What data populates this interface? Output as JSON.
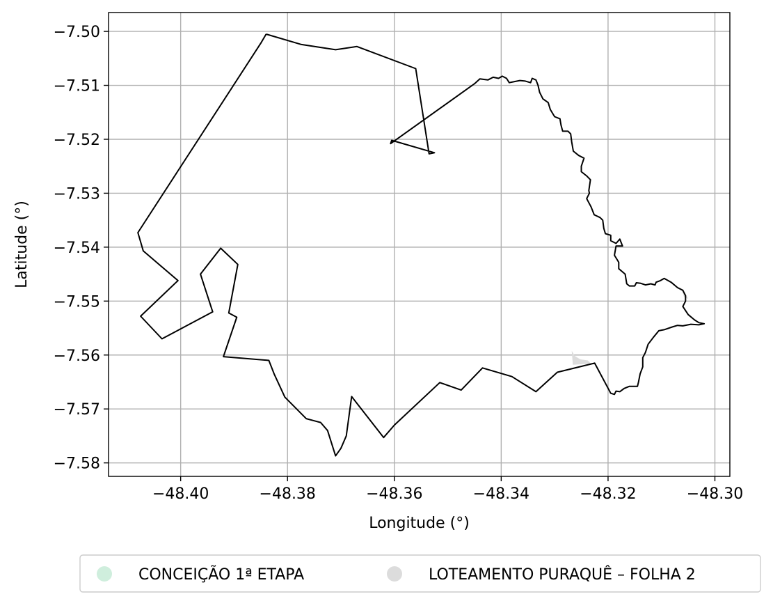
{
  "chart_data": {
    "type": "map",
    "xlabel": "Longitude (°)",
    "ylabel": "Latitude (°)",
    "xlim": [
      -48.4135,
      -48.2972
    ],
    "ylim": [
      -7.5825,
      -7.4965
    ],
    "grid": true,
    "x_ticks": [
      -48.4,
      -48.38,
      -48.36,
      -48.34,
      -48.32,
      -48.3
    ],
    "x_tick_labels": [
      "−48.40",
      "−48.38",
      "−48.36",
      "−48.34",
      "−48.32",
      "−48.30"
    ],
    "y_ticks": [
      -7.5,
      -7.51,
      -7.52,
      -7.53,
      -7.54,
      -7.55,
      -7.56,
      -7.57,
      -7.58
    ],
    "y_tick_labels": [
      "−7.50",
      "−7.51",
      "−7.52",
      "−7.53",
      "−7.54",
      "−7.55",
      "−7.56",
      "−7.57",
      "−7.58"
    ],
    "legend_position": "bottom-center",
    "series": [
      {
        "name": "CONCEIÇÃO 1ª ETAPA",
        "color": "#cfeedd",
        "polygons": []
      },
      {
        "name": "LOTEAMENTO PURAQUÊ – FOLHA 2",
        "color": "#dcdcdc",
        "polygons": [
          [
            [
              -48.3268,
              -7.5592
            ],
            [
              -48.3262,
              -7.5602
            ],
            [
              -48.3252,
              -7.5608
            ],
            [
              -48.3238,
              -7.561
            ],
            [
              -48.3232,
              -7.5616
            ],
            [
              -48.3266,
              -7.5618
            ]
          ],
          [
            [
              -48.3062,
              -7.5478
            ],
            [
              -48.3055,
              -7.5486
            ],
            [
              -48.305,
              -7.5496
            ],
            [
              -48.3058,
              -7.5492
            ]
          ]
        ]
      }
    ],
    "outline": [
      [
        -48.384,
        -7.5005
      ],
      [
        -48.3775,
        -7.5024
      ],
      [
        -48.371,
        -7.5034
      ],
      [
        -48.367,
        -7.5028
      ],
      [
        -48.356,
        -7.5069
      ],
      [
        -48.3535,
        -7.5227
      ],
      [
        -48.3525,
        -7.5225
      ],
      [
        -48.3605,
        -7.5202
      ],
      [
        -48.3607,
        -7.5208
      ],
      [
        -48.345,
        -7.5097
      ],
      [
        -48.344,
        -7.5088
      ],
      [
        -48.3425,
        -7.509
      ],
      [
        -48.3415,
        -7.5085
      ],
      [
        -48.3405,
        -7.5087
      ],
      [
        -48.3398,
        -7.5083
      ],
      [
        -48.339,
        -7.5087
      ],
      [
        -48.3385,
        -7.5095
      ],
      [
        -48.3375,
        -7.5093
      ],
      [
        -48.3365,
        -7.5091
      ],
      [
        -48.3355,
        -7.5092
      ],
      [
        -48.3345,
        -7.5095
      ],
      [
        -48.3342,
        -7.5087
      ],
      [
        -48.3335,
        -7.509
      ],
      [
        -48.3331,
        -7.51
      ],
      [
        -48.3328,
        -7.5113
      ],
      [
        -48.3322,
        -7.5125
      ],
      [
        -48.3312,
        -7.5132
      ],
      [
        -48.3308,
        -7.5145
      ],
      [
        -48.33,
        -7.5158
      ],
      [
        -48.329,
        -7.5162
      ],
      [
        -48.3288,
        -7.5174
      ],
      [
        -48.3285,
        -7.5185
      ],
      [
        -48.3275,
        -7.5185
      ],
      [
        -48.327,
        -7.519
      ],
      [
        -48.3268,
        -7.5205
      ],
      [
        -48.3265,
        -7.5222
      ],
      [
        -48.3255,
        -7.523
      ],
      [
        -48.3245,
        -7.5235
      ],
      [
        -48.325,
        -7.525
      ],
      [
        -48.325,
        -7.526
      ],
      [
        -48.324,
        -7.5268
      ],
      [
        -48.3233,
        -7.5275
      ],
      [
        -48.3236,
        -7.5295
      ],
      [
        -48.3235,
        -7.53
      ],
      [
        -48.324,
        -7.531
      ],
      [
        -48.3232,
        -7.5325
      ],
      [
        -48.3226,
        -7.534
      ],
      [
        -48.3215,
        -7.5345
      ],
      [
        -48.321,
        -7.535
      ],
      [
        -48.3208,
        -7.5365
      ],
      [
        -48.3205,
        -7.5375
      ],
      [
        -48.3195,
        -7.5378
      ],
      [
        -48.3195,
        -7.5388
      ],
      [
        -48.3185,
        -7.5393
      ],
      [
        -48.3178,
        -7.5385
      ],
      [
        -48.3173,
        -7.5398
      ],
      [
        -48.3185,
        -7.5398
      ],
      [
        -48.3188,
        -7.5415
      ],
      [
        -48.318,
        -7.5428
      ],
      [
        -48.318,
        -7.544
      ],
      [
        -48.3168,
        -7.545
      ],
      [
        -48.3165,
        -7.5468
      ],
      [
        -48.316,
        -7.5472
      ],
      [
        -48.315,
        -7.5472
      ],
      [
        -48.3147,
        -7.5466
      ],
      [
        -48.3139,
        -7.5467
      ],
      [
        -48.313,
        -7.547
      ],
      [
        -48.312,
        -7.5468
      ],
      [
        -48.3112,
        -7.547
      ],
      [
        -48.311,
        -7.5465
      ],
      [
        -48.3102,
        -7.5462
      ],
      [
        -48.3095,
        -7.5458
      ],
      [
        -48.3082,
        -7.5465
      ],
      [
        -48.307,
        -7.5475
      ],
      [
        -48.306,
        -7.548
      ],
      [
        -48.3055,
        -7.549
      ],
      [
        -48.3055,
        -7.55
      ],
      [
        -48.306,
        -7.551
      ],
      [
        -48.305,
        -7.5525
      ],
      [
        -48.3038,
        -7.5535
      ],
      [
        -48.303,
        -7.554
      ],
      [
        -48.302,
        -7.5542
      ],
      [
        -48.303,
        -7.5544
      ],
      [
        -48.3045,
        -7.5543
      ],
      [
        -48.306,
        -7.5546
      ],
      [
        -48.307,
        -7.5545
      ],
      [
        -48.308,
        -7.5548
      ],
      [
        -48.3095,
        -7.5553
      ],
      [
        -48.3105,
        -7.5555
      ],
      [
        -48.3115,
        -7.5567
      ],
      [
        -48.3125,
        -7.558
      ],
      [
        -48.313,
        -7.5595
      ],
      [
        -48.3135,
        -7.5605
      ],
      [
        -48.3135,
        -7.5622
      ],
      [
        -48.314,
        -7.5635
      ],
      [
        -48.3143,
        -7.565
      ],
      [
        -48.3145,
        -7.5658
      ],
      [
        -48.316,
        -7.5658
      ],
      [
        -48.317,
        -7.5662
      ],
      [
        -48.3178,
        -7.5668
      ],
      [
        -48.3185,
        -7.5667
      ],
      [
        -48.3188,
        -7.5673
      ],
      [
        -48.3195,
        -7.5671
      ],
      [
        -48.3225,
        -7.5615
      ],
      [
        -48.3295,
        -7.5632
      ],
      [
        -48.3335,
        -7.5668
      ],
      [
        -48.338,
        -7.564
      ],
      [
        -48.3435,
        -7.5624
      ],
      [
        -48.3475,
        -7.5665
      ],
      [
        -48.3515,
        -7.5651
      ],
      [
        -48.36,
        -7.573
      ],
      [
        -48.362,
        -7.5753
      ],
      [
        -48.368,
        -7.5677
      ],
      [
        -48.369,
        -7.575
      ],
      [
        -48.37,
        -7.5773
      ],
      [
        -48.371,
        -7.5787
      ],
      [
        -48.3725,
        -7.574
      ],
      [
        -48.3738,
        -7.5725
      ],
      [
        -48.375,
        -7.5722
      ],
      [
        -48.3765,
        -7.5718
      ],
      [
        -48.3805,
        -7.5678
      ],
      [
        -48.3825,
        -7.5635
      ],
      [
        -48.3835,
        -7.561
      ],
      [
        -48.392,
        -7.5603
      ],
      [
        -48.3895,
        -7.553
      ],
      [
        -48.391,
        -7.5522
      ],
      [
        -48.3893,
        -7.5432
      ],
      [
        -48.3925,
        -7.5402
      ],
      [
        -48.3963,
        -7.545
      ],
      [
        -48.394,
        -7.552
      ],
      [
        -48.4035,
        -7.557
      ],
      [
        -48.4075,
        -7.5528
      ],
      [
        -48.4005,
        -7.5462
      ],
      [
        -48.407,
        -7.5407
      ],
      [
        -48.408,
        -7.5373
      ],
      [
        -48.385,
        -7.5022
      ],
      [
        -48.384,
        -7.5005
      ]
    ]
  }
}
